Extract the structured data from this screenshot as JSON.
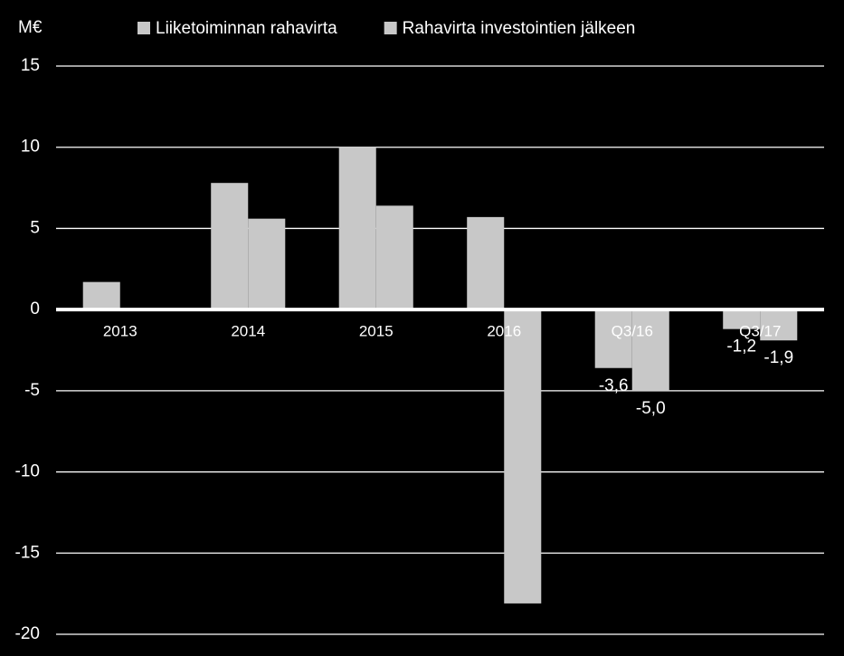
{
  "chart_data": {
    "type": "bar",
    "ylabel": "M€",
    "categories": [
      "2013",
      "2014",
      "2015",
      "2016",
      "Q3/16",
      "Q3/17"
    ],
    "series": [
      {
        "name": "Liiketoiminnan rahavirta",
        "color": "#c8c8c8",
        "values": [
          1.7,
          7.8,
          10.0,
          5.7,
          -3.6,
          -1.2
        ],
        "value_labels": [
          null,
          null,
          null,
          null,
          "-3,6",
          "-1,2"
        ]
      },
      {
        "name": "Rahavirta investointien jälkeen",
        "color": "#c8c8c8",
        "values": [
          0,
          5.6,
          6.4,
          -18.1,
          -5.0,
          -1.9
        ],
        "value_labels": [
          null,
          null,
          null,
          null,
          "-5,0",
          "-1,9"
        ]
      }
    ],
    "ylim": [
      -20,
      15
    ],
    "yticks": [
      -20,
      -15,
      -10,
      -5,
      0,
      5,
      10,
      15
    ],
    "grid": true
  }
}
